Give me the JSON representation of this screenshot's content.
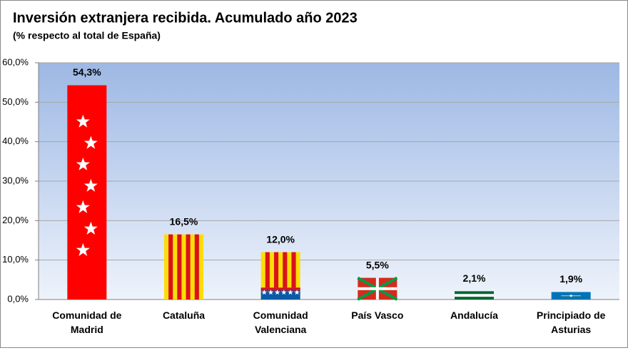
{
  "chart_data": {
    "type": "bar",
    "title": "Inversión extranjera recibida. Acumulado año 2023",
    "subtitle": "(% respecto al total de España)",
    "categories": [
      "Comunidad de Madrid",
      "Cataluña",
      "Comunidad Valenciana",
      "País Vasco",
      "Andalucía",
      "Principiado de Asturias"
    ],
    "values": [
      54.3,
      16.5,
      12.0,
      5.5,
      2.1,
      1.9
    ],
    "value_labels": [
      "54,3%",
      "16,5%",
      "12,0%",
      "5,5%",
      "2,1%",
      "1,9%"
    ],
    "colors": [
      "#ff0000",
      "#fcdd09",
      "#fcdd09",
      "#d52b1e",
      "#006633",
      "#0073b7"
    ],
    "ylim": [
      0,
      60
    ],
    "yticks": [
      {
        "value": 0,
        "label": "0,0%"
      },
      {
        "value": 10,
        "label": "10,0%"
      },
      {
        "value": 20,
        "label": "20,0%"
      },
      {
        "value": 30,
        "label": "30,0%"
      },
      {
        "value": 40,
        "label": "40,0%"
      },
      {
        "value": 50,
        "label": "50,0%"
      },
      {
        "value": 60,
        "label": "60,0%"
      }
    ],
    "grid": true
  }
}
